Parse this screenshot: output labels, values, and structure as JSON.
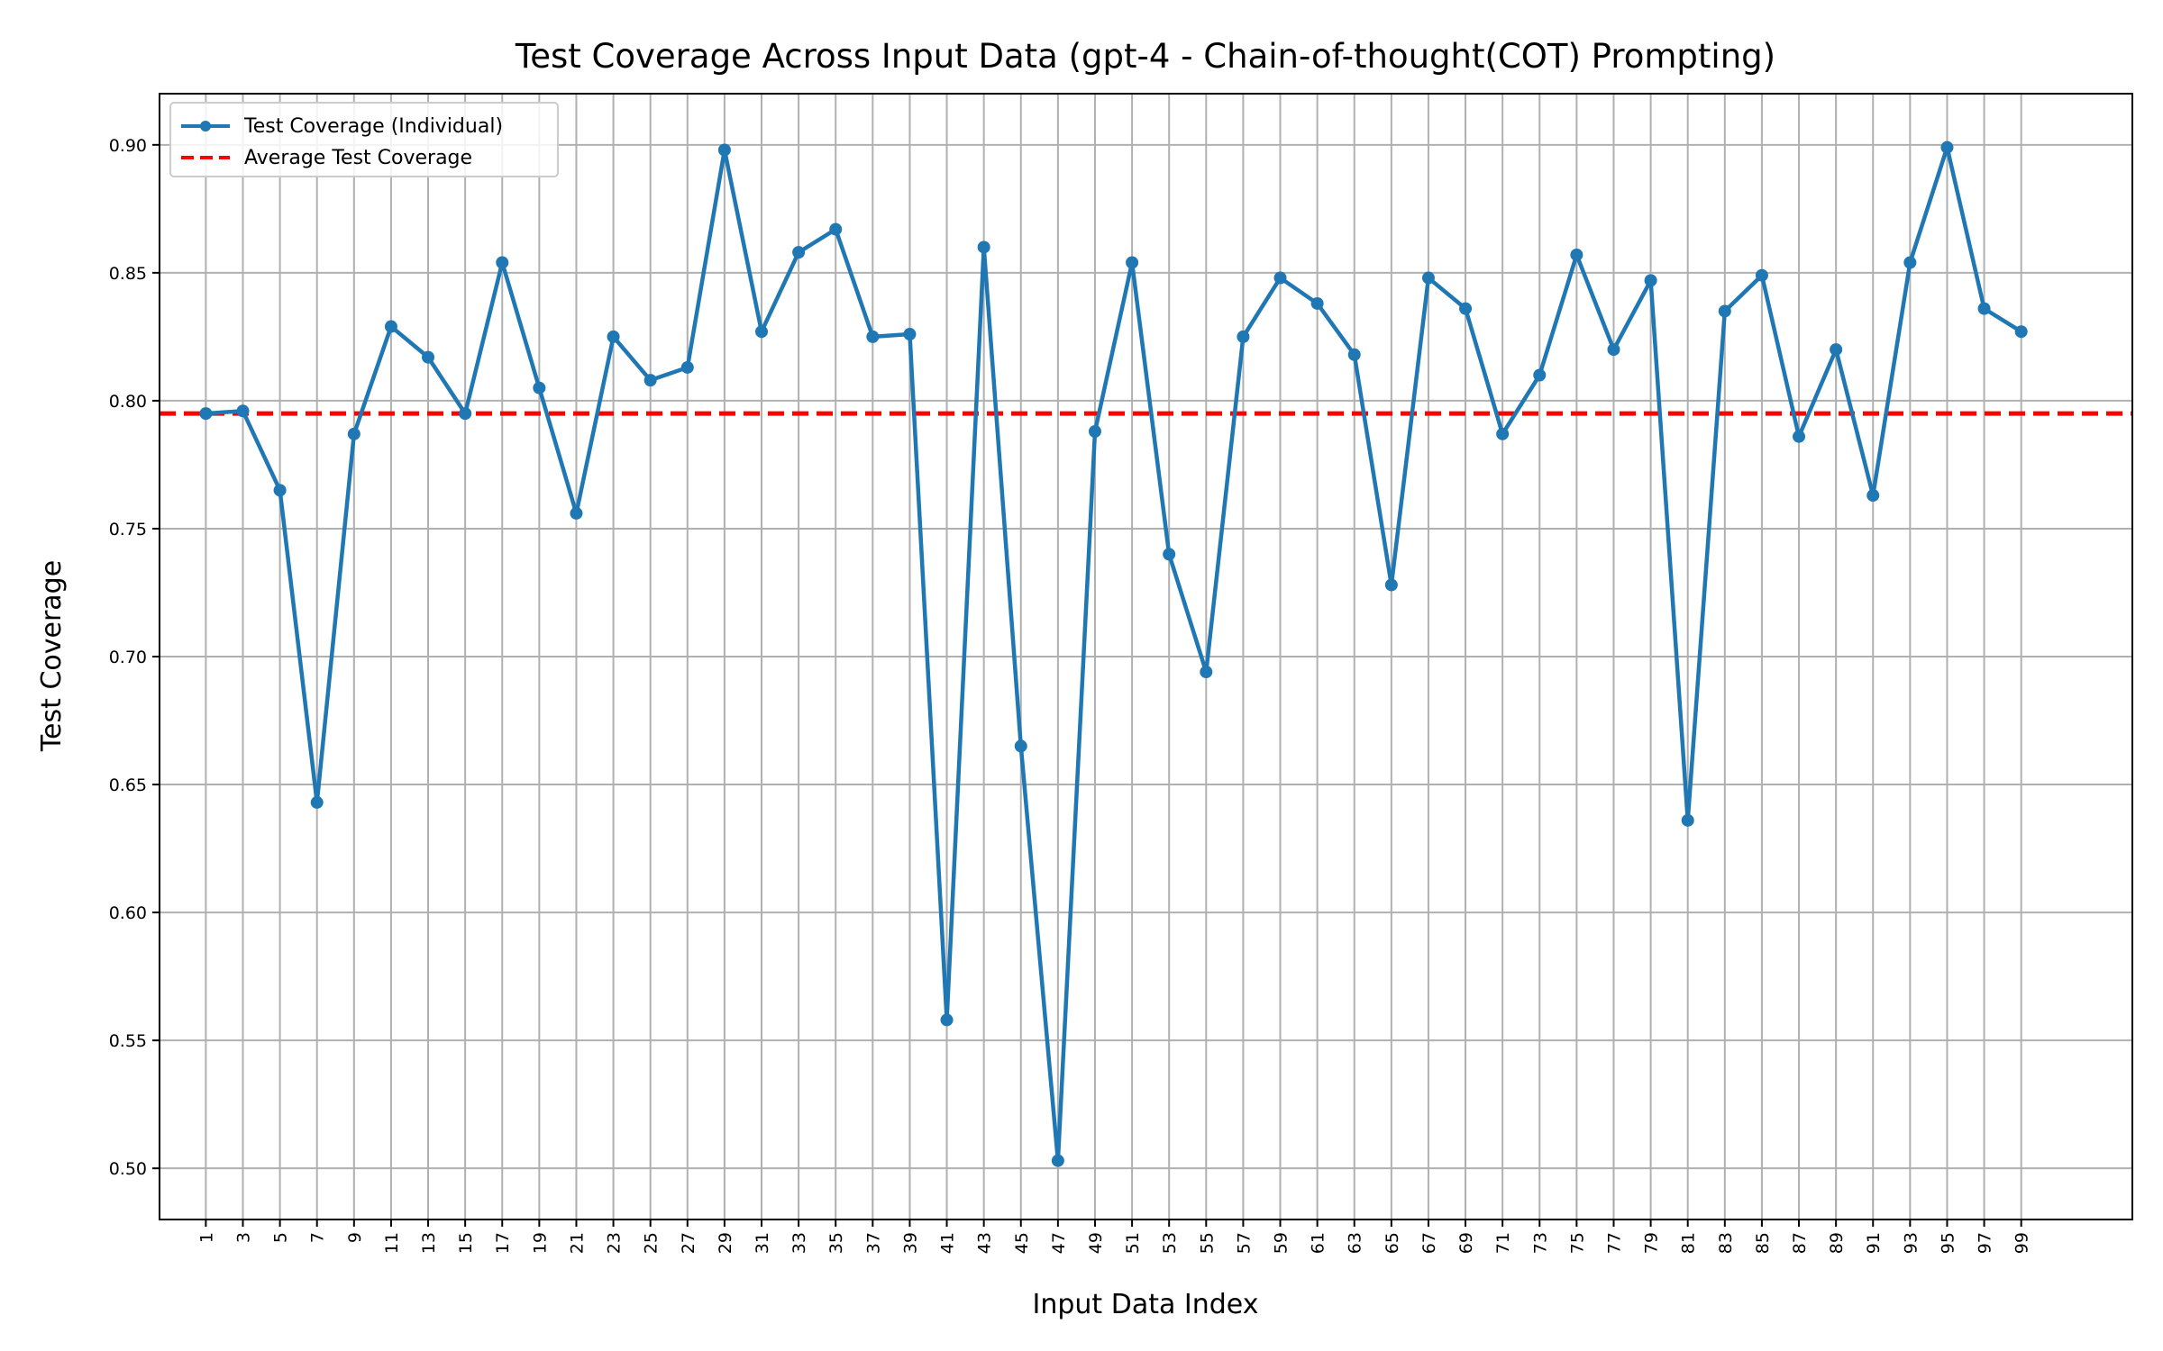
{
  "chart_data": {
    "type": "line",
    "title": "Test Coverage Across Input Data (gpt-4 - Chain-of-thought(COT) Prompting)",
    "xlabel": "Input Data Index",
    "ylabel": "Test Coverage",
    "ylim": [
      0.48,
      0.92
    ],
    "yticks": [
      0.5,
      0.55,
      0.6,
      0.65,
      0.7,
      0.75,
      0.8,
      0.85,
      0.9
    ],
    "ytick_labels": [
      "0.50",
      "0.55",
      "0.60",
      "0.65",
      "0.70",
      "0.75",
      "0.80",
      "0.85",
      "0.90"
    ],
    "xticks": [
      1,
      3,
      5,
      7,
      9,
      11,
      13,
      15,
      17,
      19,
      21,
      23,
      25,
      27,
      29,
      31,
      33,
      35,
      37,
      39,
      41,
      43,
      45,
      47,
      49,
      51,
      53,
      55,
      57,
      59,
      61,
      63,
      65,
      67,
      69,
      71,
      73,
      75,
      77,
      79,
      81,
      83,
      85,
      87,
      89,
      91,
      93,
      95,
      97,
      99
    ],
    "xtick_labels": [
      "1",
      "3",
      "5",
      "7",
      "9",
      "11",
      "13",
      "15",
      "17",
      "19",
      "21",
      "23",
      "25",
      "27",
      "29",
      "31",
      "33",
      "35",
      "37",
      "39",
      "41",
      "43",
      "45",
      "47",
      "49",
      "51",
      "53",
      "55",
      "57",
      "59",
      "61",
      "63",
      "65",
      "67",
      "69",
      "71",
      "73",
      "75",
      "77",
      "79",
      "81",
      "83",
      "85",
      "87",
      "89",
      "91",
      "93",
      "95",
      "97",
      "99"
    ],
    "grid": true,
    "legend_position": "top-left",
    "series": [
      {
        "name": "Test Coverage (Individual)",
        "color": "#1f77b4",
        "style": "solid-with-markers",
        "x": [
          1,
          3,
          5,
          7,
          9,
          11,
          13,
          15,
          17,
          19,
          21,
          23,
          25,
          27,
          29,
          31,
          33,
          35,
          37,
          39,
          41,
          43,
          45,
          47,
          49,
          51,
          53,
          55,
          57,
          59,
          61,
          63,
          65,
          67,
          69,
          71,
          73,
          75,
          77,
          79,
          81,
          83,
          85,
          87,
          89,
          91,
          93,
          95,
          97,
          99
        ],
        "y": [
          0.795,
          0.796,
          0.765,
          0.643,
          0.787,
          0.829,
          0.817,
          0.795,
          0.854,
          0.805,
          0.756,
          0.825,
          0.808,
          0.813,
          0.898,
          0.827,
          0.858,
          0.867,
          0.825,
          0.826,
          0.558,
          0.86,
          0.665,
          0.503,
          0.788,
          0.854,
          0.74,
          0.694,
          0.825,
          0.848,
          0.838,
          0.818,
          0.728,
          0.848,
          0.836,
          0.787,
          0.81,
          0.857,
          0.82,
          0.847,
          0.636,
          0.835,
          0.849,
          0.786,
          0.82,
          0.763,
          0.854,
          0.899,
          0.836,
          0.827
        ]
      },
      {
        "name": "Average Test Coverage",
        "color": "#ff0000",
        "style": "dashed",
        "value": 0.795
      }
    ]
  }
}
